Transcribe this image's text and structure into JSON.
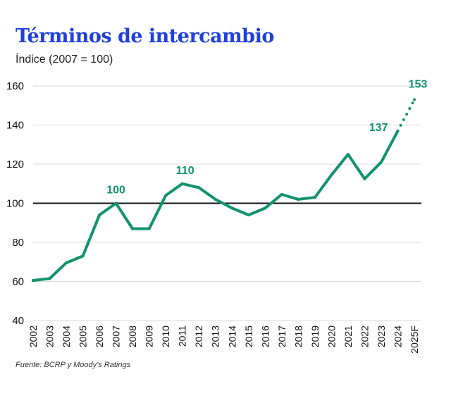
{
  "colors": {
    "title": "#1f3fe0",
    "line": "#12936b",
    "reference": "#111111",
    "grid": "#d9d9d9"
  },
  "chart_data": {
    "type": "line",
    "title": "Términos de intercambio",
    "subtitle": "Índice (2007 = 100)",
    "source": "Fuente: BCRP y Moody's Ratings",
    "categories": [
      "2002",
      "2003",
      "2004",
      "2005",
      "2006",
      "2007",
      "2008",
      "2009",
      "2010",
      "2011",
      "2012",
      "2013",
      "2014",
      "2015",
      "2016",
      "2017",
      "2018",
      "2019",
      "2020",
      "2021",
      "2022",
      "2023",
      "2024",
      "2025F"
    ],
    "series": [
      {
        "name": "Términos de intercambio",
        "values": [
          60.5,
          61.5,
          69.5,
          73,
          94,
          100,
          87,
          87,
          104,
          110,
          108,
          102,
          97.5,
          94,
          97.5,
          104.5,
          102,
          103,
          114.5,
          125,
          112.5,
          121,
          137,
          153
        ],
        "forecast_from_index": 22
      }
    ],
    "reference_line": 100,
    "ylim": [
      40,
      160
    ],
    "yticks": [
      40,
      60,
      80,
      100,
      120,
      140,
      160
    ],
    "grid": true,
    "data_labels": [
      {
        "index": 5,
        "text": "100"
      },
      {
        "index": 9,
        "text": "110"
      },
      {
        "index": 22,
        "text": "137"
      },
      {
        "index": 23,
        "text": "153"
      }
    ]
  }
}
